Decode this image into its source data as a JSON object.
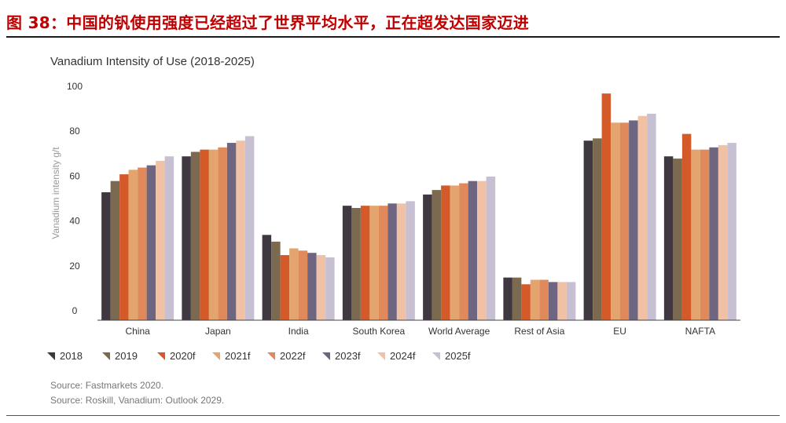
{
  "figure_title": "图 38：中国的钒使用强度已经超过了世界平均水平，正在超发达国家迈进",
  "sources": [
    "Source: Fastmarkets 2020.",
    "Source: Roskill, Vanadium: Outlook 2029."
  ],
  "chart_data": {
    "type": "bar",
    "title": "Vanadium Intensity of Use (2018-2025)",
    "xlabel": "",
    "ylabel": "Vanadium intensity g/t",
    "ylim": [
      0,
      100
    ],
    "yticks": [
      0,
      20,
      40,
      60,
      80,
      100
    ],
    "grid": false,
    "legend_position": "bottom",
    "categories": [
      "China",
      "Japan",
      "India",
      "South Korea",
      "World Average",
      "Rest of Asia",
      "EU",
      "NAFTA"
    ],
    "colors": [
      "#403841",
      "#7b6a4f",
      "#d45a2a",
      "#e3a46e",
      "#e08a5c",
      "#6e6680",
      "#f0c1a4",
      "#c7c0d2"
    ],
    "series": [
      {
        "name": "2018",
        "values": [
          57,
          73,
          38,
          51,
          56,
          19,
          80,
          73
        ]
      },
      {
        "name": "2019",
        "values": [
          62,
          75,
          35,
          50,
          58,
          19,
          81,
          72
        ]
      },
      {
        "name": "2020f",
        "values": [
          65,
          76,
          29,
          51,
          60,
          16,
          101,
          83
        ]
      },
      {
        "name": "2021f",
        "values": [
          67,
          76,
          32,
          51,
          60,
          18,
          88,
          76
        ]
      },
      {
        "name": "2022f",
        "values": [
          68,
          77,
          31,
          51,
          61,
          18,
          88,
          76
        ]
      },
      {
        "name": "2023f",
        "values": [
          69,
          79,
          30,
          52,
          62,
          17,
          89,
          77
        ]
      },
      {
        "name": "2024f",
        "values": [
          71,
          80,
          29,
          52,
          62,
          17,
          91,
          78
        ]
      },
      {
        "name": "2025f",
        "values": [
          73,
          82,
          28,
          53,
          64,
          17,
          92,
          79
        ]
      }
    ]
  }
}
